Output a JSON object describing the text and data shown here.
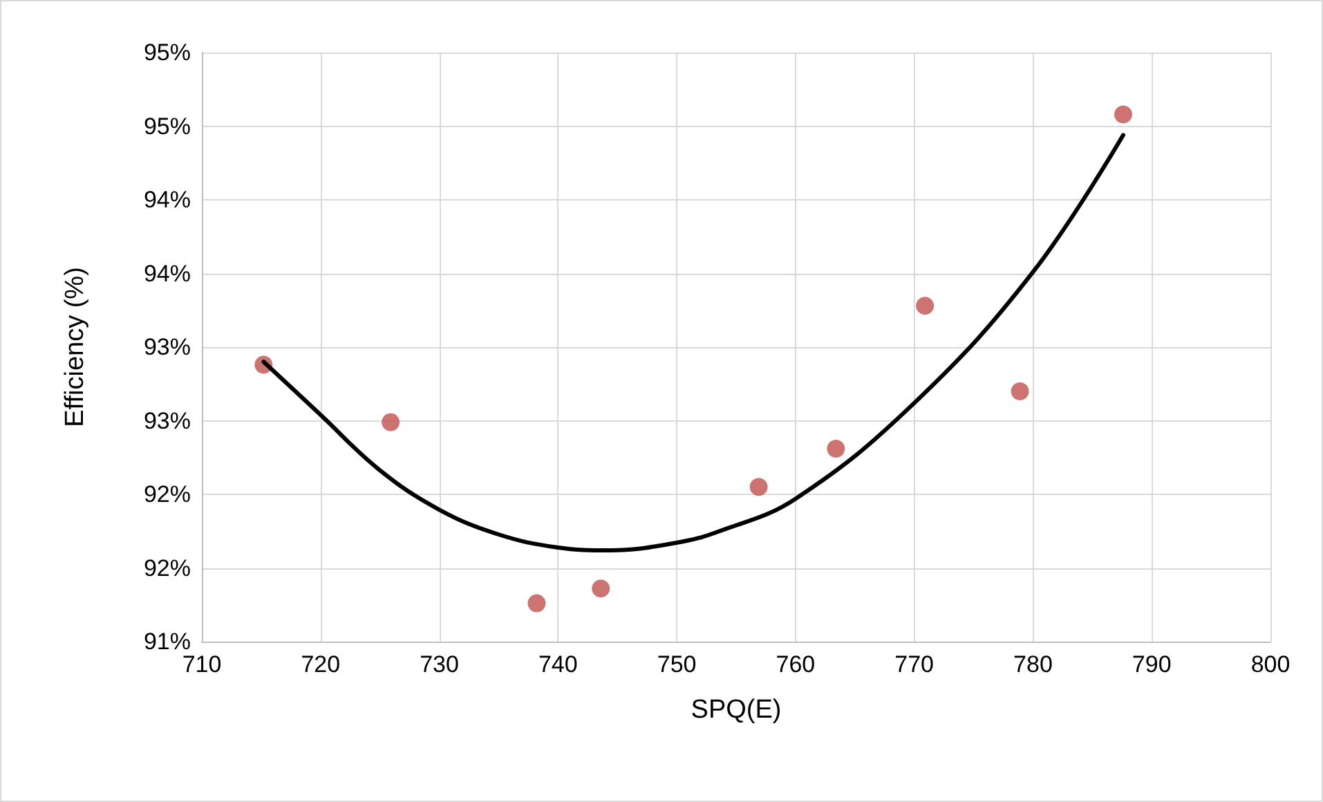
{
  "chart_data": {
    "type": "scatter",
    "xlabel": "SPQ(E)",
    "ylabel": "Efficiency (%)",
    "xlim": [
      710,
      800
    ],
    "xticks": [
      710,
      720,
      730,
      740,
      750,
      760,
      770,
      780,
      790,
      800
    ],
    "ylim": [
      91,
      95
    ],
    "yticks": [
      {
        "value": 91,
        "label": "91%"
      },
      {
        "value": 91.5,
        "label": "92%"
      },
      {
        "value": 92,
        "label": "92%"
      },
      {
        "value": 92.5,
        "label": "93%"
      },
      {
        "value": 93,
        "label": "93%"
      },
      {
        "value": 93.5,
        "label": "94%"
      },
      {
        "value": 94,
        "label": "94%"
      },
      {
        "value": 94.5,
        "label": "95%"
      },
      {
        "value": 95,
        "label": "95%"
      }
    ],
    "grid": true,
    "series": [
      {
        "color": "#c0504d",
        "marker": "circle",
        "x": [
          715.2,
          725.9,
          738.2,
          743.6,
          756.9,
          763.4,
          770.9,
          778.9,
          787.6
        ],
        "values": [
          92.88,
          92.49,
          91.26,
          91.36,
          92.05,
          92.31,
          93.28,
          92.7,
          94.58
        ]
      },
      {
        "type": "line",
        "color": "#000000",
        "marker": "none",
        "line_style": "solid",
        "x": [
          715.2,
          720,
          724.9,
          729.9,
          734.9,
          739.9,
          744.4,
          749.9,
          753.6,
          760,
          770,
          780,
          787.6
        ],
        "values": [
          92.9,
          92.54,
          92.17,
          91.9,
          91.73,
          91.64,
          91.62,
          91.67,
          91.75,
          91.97,
          92.62,
          93.51,
          94.44
        ]
      }
    ]
  }
}
